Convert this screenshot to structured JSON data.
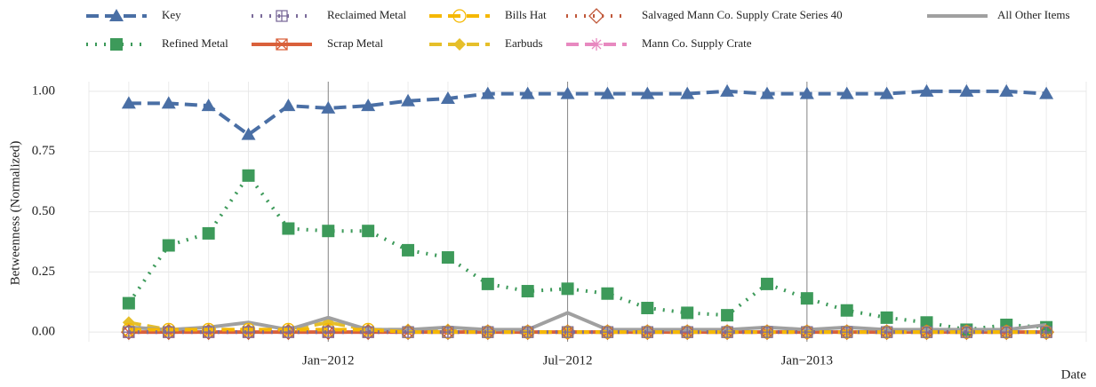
{
  "chart_data": {
    "type": "line",
    "x_label": "Date",
    "y_label": "Betweenness (Normalized)",
    "x": [
      "2011-08",
      "2011-09",
      "2011-10",
      "2011-11",
      "2011-12",
      "2012-01",
      "2012-02",
      "2012-03",
      "2012-04",
      "2012-05",
      "2012-06",
      "2012-07",
      "2012-08",
      "2012-09",
      "2012-10",
      "2012-11",
      "2012-12",
      "2013-01",
      "2013-02",
      "2013-03",
      "2013-04",
      "2013-05",
      "2013-06",
      "2013-07"
    ],
    "xlim": [
      "2011-07",
      "2013-08"
    ],
    "xticks": [
      {
        "value": "2012-01",
        "label": "Jan−2012"
      },
      {
        "value": "2012-07",
        "label": "Jul−2012"
      },
      {
        "value": "2013-01",
        "label": "Jan−2013"
      }
    ],
    "ylim": [
      -0.04,
      1.04
    ],
    "yticks": [
      {
        "value": 0,
        "label": "0.00"
      },
      {
        "value": 0.25,
        "label": "0.25"
      },
      {
        "value": 0.5,
        "label": "0.50"
      },
      {
        "value": 0.75,
        "label": "0.75"
      },
      {
        "value": 1,
        "label": "1.00"
      }
    ],
    "grid": true,
    "series": [
      {
        "name": "Key",
        "color": "#4a6fa5",
        "linestyle": "dashed",
        "marker": "triangle",
        "values": [
          0.95,
          0.95,
          0.94,
          0.82,
          0.94,
          0.93,
          0.94,
          0.96,
          0.97,
          0.99,
          0.99,
          0.99,
          0.99,
          0.99,
          0.99,
          1.0,
          0.99,
          0.99,
          0.99,
          0.99,
          1.0,
          1.0,
          1.0,
          0.99
        ]
      },
      {
        "name": "Reclaimed Metal",
        "color": "#7b6b9a",
        "linestyle": "dotted",
        "marker": "square-plus",
        "values": [
          0,
          0,
          0,
          0,
          0,
          0,
          0,
          0,
          0,
          0,
          0,
          0,
          0,
          0,
          0,
          0,
          0,
          0,
          0,
          0,
          0,
          0,
          0,
          0
        ]
      },
      {
        "name": "Bills Hat",
        "color": "#f5b800",
        "linestyle": "dashed",
        "marker": "circle",
        "values": [
          0.01,
          0.01,
          0.01,
          0.01,
          0.01,
          0.01,
          0.01,
          0,
          0,
          0,
          0,
          0,
          0,
          0,
          0,
          0,
          0,
          0,
          0,
          0,
          0,
          0,
          0,
          0
        ]
      },
      {
        "name": "Salvaged Mann Co. Supply Crate Series 40",
        "color": "#c0583a",
        "linestyle": "dotted",
        "marker": "diamond",
        "values": [
          0,
          0,
          0,
          0,
          0,
          0,
          0,
          0,
          0,
          0,
          0,
          0,
          0,
          0,
          0,
          0,
          0,
          0,
          0,
          0,
          0,
          0,
          0,
          0
        ]
      },
      {
        "name": "All Other Items",
        "color": "#a0a0a0",
        "linestyle": "solid",
        "marker": "none",
        "values": [
          0.02,
          0.01,
          0.02,
          0.04,
          0.01,
          0.06,
          0.01,
          0.01,
          0.02,
          0.01,
          0.01,
          0.08,
          0.01,
          0.01,
          0.01,
          0.01,
          0.02,
          0.01,
          0.02,
          0.01,
          0.01,
          0.01,
          0.01,
          0.03
        ]
      },
      {
        "name": "Refined Metal",
        "color": "#3d9a5a",
        "linestyle": "dotted",
        "marker": "square",
        "values": [
          0.12,
          0.36,
          0.41,
          0.65,
          0.43,
          0.42,
          0.42,
          0.34,
          0.31,
          0.2,
          0.17,
          0.18,
          0.16,
          0.1,
          0.08,
          0.07,
          0.2,
          0.14,
          0.09,
          0.06,
          0.04,
          0.01,
          0.03,
          0.02
        ]
      },
      {
        "name": "Scrap Metal",
        "color": "#d9603b",
        "linestyle": "solid",
        "marker": "square-x",
        "values": [
          0,
          0,
          0,
          0,
          0,
          0,
          0,
          0,
          0,
          0,
          0,
          0,
          0,
          0,
          0,
          0,
          0,
          0,
          0,
          0,
          0,
          0,
          0,
          0
        ]
      },
      {
        "name": "Earbuds",
        "color": "#e6bf2a",
        "linestyle": "dashed",
        "marker": "filled-diamond",
        "values": [
          0.04,
          0.01,
          0.01,
          0.01,
          0.01,
          0.04,
          0.01,
          0.01,
          0.01,
          0,
          0,
          0,
          0,
          0,
          0,
          0,
          0,
          0,
          0,
          0,
          0,
          0,
          0,
          0
        ]
      },
      {
        "name": "Mann Co. Supply Crate",
        "color": "#e889c0",
        "linestyle": "dashed",
        "marker": "asterisk",
        "values": [
          0,
          0,
          0,
          0,
          0,
          0,
          0,
          0,
          0,
          0,
          0,
          0,
          0,
          0,
          0,
          0,
          0,
          0,
          0,
          0,
          0,
          0,
          0,
          0
        ]
      }
    ]
  }
}
